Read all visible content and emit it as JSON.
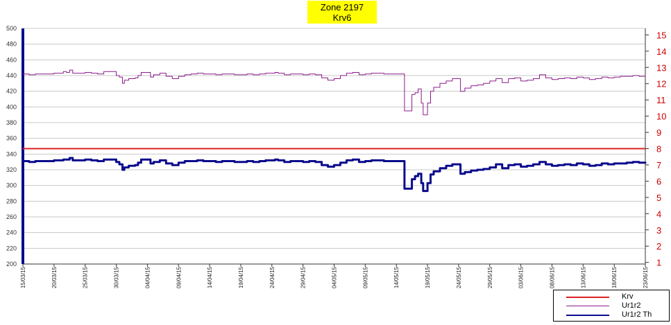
{
  "chart_data": {
    "type": "line",
    "title": "Zone 2197",
    "subtitle": "Krv6",
    "left_axis": {
      "ylim": [
        200,
        500
      ],
      "ticks": [
        "200",
        "220",
        "240",
        "260",
        "280",
        "300",
        "320",
        "340",
        "360",
        "380",
        "400",
        "420",
        "440",
        "460",
        "480",
        "500"
      ],
      "color": "#0a0a8c"
    },
    "right_axis": {
      "ylim": [
        0.9,
        15.4
      ],
      "ticks": [
        "1",
        "2",
        "3",
        "4",
        "5",
        "6",
        "7",
        "8",
        "9",
        "10",
        "11",
        "12",
        "13",
        "14",
        "15"
      ],
      "color": "#cc0000"
    },
    "x_labels": [
      "15/03/15",
      "20/03/15",
      "25/03/15",
      "30/03/15",
      "04/04/15",
      "09/04/15",
      "14/04/15",
      "19/04/15",
      "24/04/15",
      "29/04/15",
      "04/05/15",
      "09/05/15",
      "14/05/15",
      "19/05/15",
      "24/05/15",
      "29/05/15",
      "03/06/15",
      "08/06/15",
      "13/06/15",
      "18/06/15",
      "23/06/15"
    ],
    "x_start_day": 0,
    "x_end_day": 100,
    "grid": true,
    "legend_position": "bottom-right",
    "series": [
      {
        "name": "Krv",
        "color": "#dd2222",
        "axis": "right",
        "width": 2,
        "points": [
          [
            0,
            8
          ],
          [
            100,
            8
          ]
        ]
      },
      {
        "name": "Ur1r2",
        "color": "#8b1a8b",
        "axis": "left",
        "width": 1,
        "points": [
          [
            0,
            442
          ],
          [
            1,
            441
          ],
          [
            2,
            442
          ],
          [
            4,
            442
          ],
          [
            5,
            443
          ],
          [
            6,
            443
          ],
          [
            6.5,
            445
          ],
          [
            7,
            444
          ],
          [
            7.5,
            447
          ],
          [
            8,
            443
          ],
          [
            9,
            443
          ],
          [
            10,
            444
          ],
          [
            11,
            443
          ],
          [
            12,
            442
          ],
          [
            13,
            445
          ],
          [
            14,
            445
          ],
          [
            15,
            440
          ],
          [
            15.5,
            438
          ],
          [
            16,
            430
          ],
          [
            16.3,
            434
          ],
          [
            17,
            436
          ],
          [
            18,
            437
          ],
          [
            18.5,
            440
          ],
          [
            19,
            444
          ],
          [
            20,
            444
          ],
          [
            20.5,
            438
          ],
          [
            21,
            441
          ],
          [
            22,
            443
          ],
          [
            23,
            439
          ],
          [
            24,
            436
          ],
          [
            25,
            439
          ],
          [
            26,
            441
          ],
          [
            27,
            442
          ],
          [
            28,
            443
          ],
          [
            29,
            442
          ],
          [
            30,
            442
          ],
          [
            31,
            441
          ],
          [
            32,
            442
          ],
          [
            33,
            442
          ],
          [
            34,
            441
          ],
          [
            35,
            441
          ],
          [
            36,
            442
          ],
          [
            37,
            441
          ],
          [
            38,
            442
          ],
          [
            39,
            443
          ],
          [
            40,
            443
          ],
          [
            40.5,
            444
          ],
          [
            41,
            443
          ],
          [
            42,
            441
          ],
          [
            43,
            442
          ],
          [
            44,
            442
          ],
          [
            45,
            441
          ],
          [
            46,
            442
          ],
          [
            47,
            441
          ],
          [
            48,
            437
          ],
          [
            49,
            434
          ],
          [
            50,
            436
          ],
          [
            51,
            440
          ],
          [
            52,
            443
          ],
          [
            53,
            444
          ],
          [
            54,
            441
          ],
          [
            55,
            442
          ],
          [
            56,
            443
          ],
          [
            57,
            443
          ],
          [
            58,
            442
          ],
          [
            61,
            442
          ],
          [
            61.3,
            395
          ],
          [
            62,
            395
          ],
          [
            62.5,
            416
          ],
          [
            63,
            418
          ],
          [
            63.5,
            423
          ],
          [
            64,
            405
          ],
          [
            64.3,
            390
          ],
          [
            65,
            405
          ],
          [
            65.5,
            420
          ],
          [
            66,
            425
          ],
          [
            67,
            430
          ],
          [
            68,
            433
          ],
          [
            69,
            436
          ],
          [
            70,
            436
          ],
          [
            70.3,
            420
          ],
          [
            71,
            424
          ],
          [
            72,
            427
          ],
          [
            73,
            428
          ],
          [
            74,
            430
          ],
          [
            75,
            433
          ],
          [
            76,
            436
          ],
          [
            77,
            431
          ],
          [
            78,
            436
          ],
          [
            79,
            437
          ],
          [
            80,
            433
          ],
          [
            81,
            434
          ],
          [
            82,
            436
          ],
          [
            83,
            441
          ],
          [
            84,
            437
          ],
          [
            85,
            435
          ],
          [
            86,
            436
          ],
          [
            87,
            437
          ],
          [
            88,
            436
          ],
          [
            89,
            438
          ],
          [
            90,
            437
          ],
          [
            91,
            435
          ],
          [
            92,
            436
          ],
          [
            93,
            438
          ],
          [
            94,
            437
          ],
          [
            95,
            438
          ],
          [
            96,
            439
          ],
          [
            97,
            439
          ],
          [
            98,
            440
          ],
          [
            99,
            439
          ],
          [
            100,
            440
          ]
        ]
      },
      {
        "name": "Ur1r2 Th",
        "color": "#0a0a8c",
        "axis": "left",
        "width": 3,
        "points": [
          [
            0,
            331
          ],
          [
            1,
            330
          ],
          [
            2,
            331
          ],
          [
            4,
            331
          ],
          [
            5,
            332
          ],
          [
            6,
            332
          ],
          [
            6.5,
            333
          ],
          [
            7,
            333
          ],
          [
            7.5,
            335
          ],
          [
            8,
            332
          ],
          [
            9,
            332
          ],
          [
            10,
            333
          ],
          [
            11,
            332
          ],
          [
            12,
            331
          ],
          [
            13,
            333
          ],
          [
            14,
            333
          ],
          [
            15,
            330
          ],
          [
            15.5,
            327
          ],
          [
            16,
            320
          ],
          [
            16.3,
            323
          ],
          [
            17,
            325
          ],
          [
            18,
            326
          ],
          [
            18.5,
            329
          ],
          [
            19,
            333
          ],
          [
            20,
            333
          ],
          [
            20.5,
            328
          ],
          [
            21,
            330
          ],
          [
            22,
            332
          ],
          [
            23,
            328
          ],
          [
            24,
            326
          ],
          [
            25,
            329
          ],
          [
            26,
            331
          ],
          [
            27,
            331
          ],
          [
            28,
            332
          ],
          [
            29,
            331
          ],
          [
            30,
            331
          ],
          [
            31,
            330
          ],
          [
            32,
            331
          ],
          [
            33,
            331
          ],
          [
            34,
            330
          ],
          [
            35,
            330
          ],
          [
            36,
            331
          ],
          [
            37,
            330
          ],
          [
            38,
            331
          ],
          [
            39,
            332
          ],
          [
            40,
            332
          ],
          [
            40.5,
            333
          ],
          [
            41,
            332
          ],
          [
            42,
            330
          ],
          [
            43,
            331
          ],
          [
            44,
            331
          ],
          [
            45,
            330
          ],
          [
            46,
            331
          ],
          [
            47,
            330
          ],
          [
            48,
            326
          ],
          [
            49,
            324
          ],
          [
            50,
            326
          ],
          [
            51,
            329
          ],
          [
            52,
            332
          ],
          [
            53,
            333
          ],
          [
            54,
            330
          ],
          [
            55,
            331
          ],
          [
            56,
            332
          ],
          [
            57,
            332
          ],
          [
            58,
            331
          ],
          [
            61,
            331
          ],
          [
            61.3,
            296
          ],
          [
            62,
            296
          ],
          [
            62.5,
            308
          ],
          [
            63,
            312
          ],
          [
            63.5,
            315
          ],
          [
            64,
            303
          ],
          [
            64.3,
            293
          ],
          [
            65,
            303
          ],
          [
            65.5,
            314
          ],
          [
            66,
            318
          ],
          [
            67,
            322
          ],
          [
            68,
            325
          ],
          [
            69,
            327
          ],
          [
            70,
            327
          ],
          [
            70.3,
            315
          ],
          [
            71,
            317
          ],
          [
            72,
            319
          ],
          [
            73,
            320
          ],
          [
            74,
            321
          ],
          [
            75,
            323
          ],
          [
            76,
            327
          ],
          [
            77,
            322
          ],
          [
            78,
            326
          ],
          [
            79,
            327
          ],
          [
            80,
            324
          ],
          [
            81,
            325
          ],
          [
            82,
            327
          ],
          [
            83,
            330
          ],
          [
            84,
            327
          ],
          [
            85,
            325
          ],
          [
            86,
            326
          ],
          [
            87,
            327
          ],
          [
            88,
            326
          ],
          [
            89,
            328
          ],
          [
            90,
            327
          ],
          [
            91,
            325
          ],
          [
            92,
            326
          ],
          [
            93,
            328
          ],
          [
            94,
            327
          ],
          [
            95,
            328
          ],
          [
            96,
            328
          ],
          [
            97,
            329
          ],
          [
            98,
            330
          ],
          [
            99,
            329
          ],
          [
            100,
            330
          ]
        ]
      }
    ]
  }
}
